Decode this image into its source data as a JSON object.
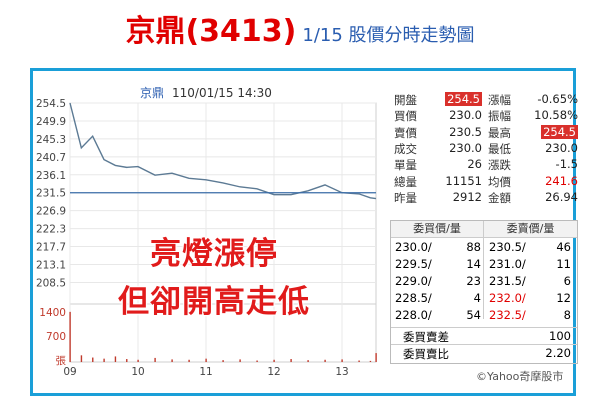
{
  "title": {
    "main": "京鼎(3413)",
    "sub": "1/15 股價分時走勢圖"
  },
  "chart_header": {
    "stock": "京鼎",
    "datetime": "110/01/15 14:30"
  },
  "quote_left": [
    {
      "label": "開盤",
      "value": "254.5",
      "highlight": true
    },
    {
      "label": "買價",
      "value": "230.0"
    },
    {
      "label": "賣價",
      "value": "230.5"
    },
    {
      "label": "成交",
      "value": "230.0"
    },
    {
      "label": "單量",
      "value": "26"
    },
    {
      "label": "總量",
      "value": "11151"
    },
    {
      "label": "昨量",
      "value": "2912"
    }
  ],
  "quote_right": [
    {
      "label": "漲幅",
      "value": "-0.65%"
    },
    {
      "label": "振幅",
      "value": "10.58%"
    },
    {
      "label": "最高",
      "value": "254.5",
      "highlight": true
    },
    {
      "label": "最低",
      "value": "230.0"
    },
    {
      "label": "漲跌",
      "value": "-1.5"
    },
    {
      "label": "均價",
      "value": "241.6",
      "red": true
    },
    {
      "label": "金額",
      "value": "26.94"
    }
  ],
  "orderbook": {
    "bid_header": "委買價/量",
    "ask_header": "委賣價/量",
    "bids": [
      {
        "price": "230.0/",
        "vol": "88"
      },
      {
        "price": "229.5/",
        "vol": "14"
      },
      {
        "price": "229.0/",
        "vol": "23"
      },
      {
        "price": "228.5/",
        "vol": "4"
      },
      {
        "price": "228.0/",
        "vol": "54"
      }
    ],
    "asks": [
      {
        "price": "230.5/",
        "vol": "46",
        "red": false
      },
      {
        "price": "231.0/",
        "vol": "11",
        "red": false
      },
      {
        "price": "231.5/",
        "vol": "6",
        "red": false
      },
      {
        "price": "232.0/",
        "vol": "12",
        "red": true
      },
      {
        "price": "232.5/",
        "vol": "8",
        "red": true
      }
    ],
    "diff_label": "委買賣差",
    "diff_value": "100",
    "ratio_label": "委買賣比",
    "ratio_value": "2.20"
  },
  "overlay": {
    "line1": "亮燈漲停",
    "line2": "但卻開高走低"
  },
  "credit": "©Yahoo奇摩股市",
  "colors": {
    "line": "#5c7a94",
    "ref": "#3b6ea8",
    "volume": "#c0392b",
    "accent": "#e00000"
  },
  "chart_data": {
    "type": "line",
    "x": [
      "09:00",
      "09:10",
      "09:20",
      "09:30",
      "09:40",
      "09:50",
      "10:00",
      "10:15",
      "10:30",
      "10:45",
      "11:00",
      "11:15",
      "11:30",
      "11:45",
      "12:00",
      "12:15",
      "12:30",
      "12:45",
      "13:00",
      "13:15",
      "13:25",
      "13:30"
    ],
    "values": [
      254.5,
      243.0,
      246.0,
      240.0,
      238.5,
      238.0,
      238.2,
      236.0,
      236.5,
      235.2,
      234.8,
      234.0,
      233.0,
      232.5,
      231.0,
      231.0,
      232.0,
      233.5,
      231.5,
      231.2,
      230.2,
      230.0
    ],
    "reference_line": 231.5,
    "ylim": [
      204.0,
      254.5
    ],
    "yticks": [
      "254.5",
      "249.9",
      "245.3",
      "240.7",
      "236.1",
      "231.5",
      "226.9",
      "222.3",
      "217.7",
      "213.1",
      "208.5"
    ],
    "xticks": [
      "09",
      "10",
      "11",
      "12",
      "13"
    ],
    "volume_ticks": [
      "1400",
      "700",
      "張"
    ],
    "volume_ylim": [
      0,
      1400
    ],
    "volume": [
      1350,
      180,
      120,
      90,
      150,
      80,
      60,
      110,
      70,
      60,
      90,
      50,
      70,
      40,
      60,
      80,
      50,
      60,
      70,
      40,
      30,
      240
    ]
  }
}
